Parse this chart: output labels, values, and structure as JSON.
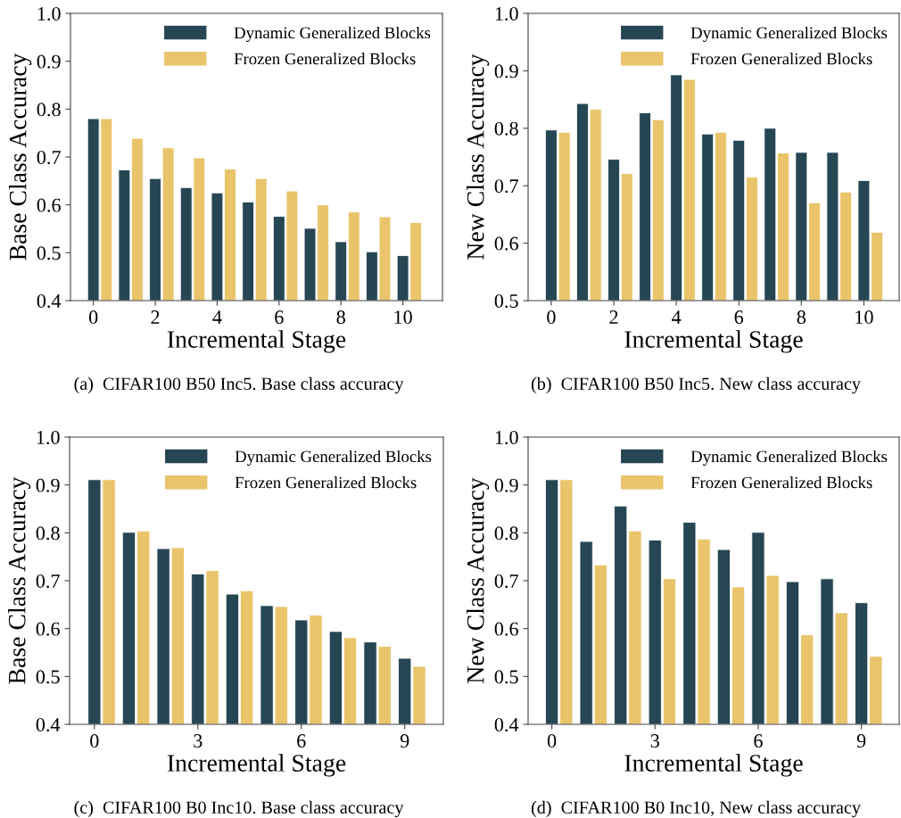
{
  "chart_data": [
    {
      "type": "bar",
      "xlabel": "Incremental Stage",
      "ylabel": "Base Class Accuracy",
      "x": [
        0,
        1,
        2,
        3,
        4,
        5,
        6,
        7,
        8,
        9,
        10
      ],
      "xlim": [
        -0.74,
        11.28
      ],
      "xticks": [
        0,
        2,
        4,
        6,
        8,
        10
      ],
      "ylim": [
        0.4,
        1.0
      ],
      "yticks": [
        {
          "value": 0.4,
          "label": "0.4"
        },
        {
          "value": 0.5,
          "label": "0.5"
        },
        {
          "value": 0.6,
          "label": "0.6"
        },
        {
          "value": 0.7,
          "label": "0.7"
        },
        {
          "value": 0.8,
          "label": "0.8"
        },
        {
          "value": 0.9,
          "label": "0.9"
        },
        {
          "value": 1.0,
          "label": "1.0"
        }
      ],
      "legend": "top right",
      "series": [
        {
          "name": "Dynamic Generalized Blocks",
          "color": "#264653",
          "values": [
            0.78,
            0.673,
            0.655,
            0.636,
            0.625,
            0.606,
            0.576,
            0.551,
            0.523,
            0.502,
            0.494
          ]
        },
        {
          "name": "Frozen Generalized Blocks",
          "color": "#e9c46a",
          "values": [
            0.78,
            0.739,
            0.719,
            0.698,
            0.675,
            0.655,
            0.629,
            0.6,
            0.585,
            0.575,
            0.563
          ]
        }
      ],
      "annotations": [
        "(a)  CIFAR100 B50 Inc5. Base class accuracy"
      ]
    },
    {
      "type": "bar",
      "xlabel": "Incremental Stage",
      "ylabel": "New Class Accuracy",
      "x": [
        0,
        1,
        2,
        3,
        4,
        5,
        6,
        7,
        8,
        9,
        10
      ],
      "xlim": [
        -0.74,
        11.13
      ],
      "xticks": [
        0,
        2,
        4,
        6,
        8,
        10
      ],
      "ylim": [
        0.5,
        1.0
      ],
      "yticks": [
        {
          "value": 0.5,
          "label": "0.5"
        },
        {
          "value": 0.6,
          "label": "0.6"
        },
        {
          "value": 0.7,
          "label": "0.7"
        },
        {
          "value": 0.8,
          "label": "0.8"
        },
        {
          "value": 0.9,
          "label": "0.9"
        },
        {
          "value": 1.0,
          "label": "1.0"
        }
      ],
      "legend": "top right",
      "series": [
        {
          "name": "Dynamic Generalized Blocks",
          "color": "#264653",
          "values": [
            0.797,
            0.843,
            0.746,
            0.827,
            0.893,
            0.79,
            0.779,
            0.8,
            0.758,
            0.758,
            0.709
          ]
        },
        {
          "name": "Frozen Generalized Blocks",
          "color": "#e9c46a",
          "values": [
            0.793,
            0.833,
            0.721,
            0.815,
            0.885,
            0.793,
            0.715,
            0.757,
            0.67,
            0.689,
            0.619
          ]
        }
      ],
      "annotations": [
        "(b)  CIFAR100 B50 Inc5. New class accuracy"
      ]
    },
    {
      "type": "bar",
      "xlabel": "Incremental Stage",
      "ylabel": "Base Class Accuracy",
      "x": [
        0,
        1,
        2,
        3,
        4,
        5,
        6,
        7,
        8,
        9
      ],
      "xlim": [
        -0.72,
        10.12
      ],
      "xticks": [
        0,
        3,
        6,
        9
      ],
      "ylim": [
        0.4,
        1.0
      ],
      "yticks": [
        {
          "value": 0.4,
          "label": "0.4"
        },
        {
          "value": 0.5,
          "label": "0.5"
        },
        {
          "value": 0.6,
          "label": "0.6"
        },
        {
          "value": 0.7,
          "label": "0.7"
        },
        {
          "value": 0.8,
          "label": "0.8"
        },
        {
          "value": 0.9,
          "label": "0.9"
        },
        {
          "value": 1.0,
          "label": "1.0"
        }
      ],
      "legend": "top right",
      "series": [
        {
          "name": "Dynamic Generalized Blocks",
          "color": "#264653",
          "values": [
            0.911,
            0.801,
            0.767,
            0.714,
            0.672,
            0.648,
            0.618,
            0.594,
            0.572,
            0.538
          ]
        },
        {
          "name": "Frozen Generalized Blocks",
          "color": "#e9c46a",
          "values": [
            0.911,
            0.804,
            0.769,
            0.721,
            0.679,
            0.646,
            0.628,
            0.581,
            0.563,
            0.521
          ]
        }
      ],
      "annotations": [
        "(c)  CIFAR100 B0 Inc10. Base class accuracy"
      ]
    },
    {
      "type": "bar",
      "xlabel": "Incremental Stage",
      "ylabel": "New Class Accuracy",
      "x": [
        0,
        1,
        2,
        3,
        4,
        5,
        6,
        7,
        8,
        9
      ],
      "xlim": [
        -0.69,
        10.1
      ],
      "xticks": [
        0,
        3,
        6,
        9
      ],
      "ylim": [
        0.4,
        1.0
      ],
      "yticks": [
        {
          "value": 0.4,
          "label": "0.4"
        },
        {
          "value": 0.5,
          "label": "0.5"
        },
        {
          "value": 0.6,
          "label": "0.6"
        },
        {
          "value": 0.7,
          "label": "0.7"
        },
        {
          "value": 0.8,
          "label": "0.8"
        },
        {
          "value": 0.9,
          "label": "0.9"
        },
        {
          "value": 1.0,
          "label": "1.0"
        }
      ],
      "legend": "top right",
      "series": [
        {
          "name": "Dynamic Generalized Blocks",
          "color": "#264653",
          "values": [
            0.911,
            0.782,
            0.856,
            0.785,
            0.822,
            0.765,
            0.801,
            0.698,
            0.704,
            0.654
          ]
        },
        {
          "name": "Frozen Generalized Blocks",
          "color": "#e9c46a",
          "values": [
            0.911,
            0.733,
            0.804,
            0.704,
            0.787,
            0.687,
            0.711,
            0.587,
            0.633,
            0.542
          ]
        }
      ],
      "annotations": [
        "(d)  CIFAR100 B0 Inc10, New class accuracy"
      ]
    }
  ]
}
